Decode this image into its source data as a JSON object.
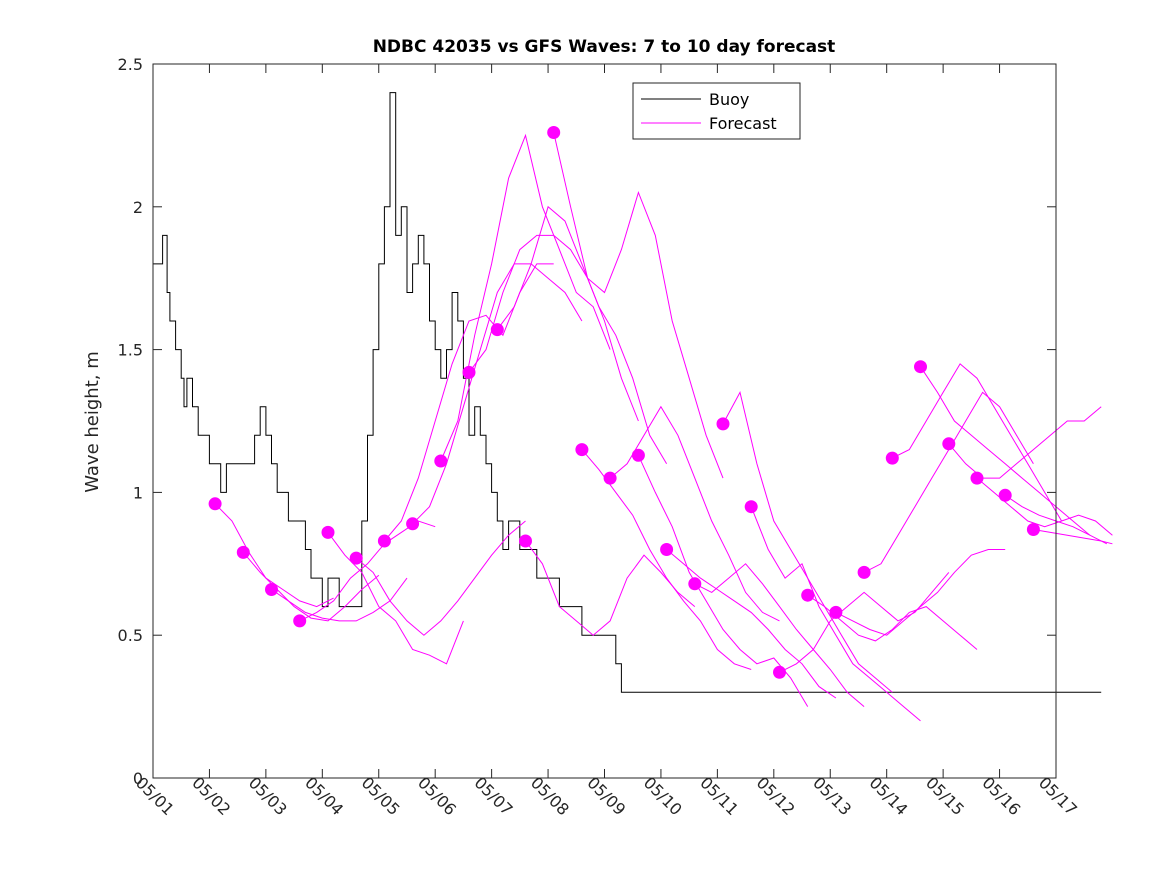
{
  "chart_data": {
    "type": "line",
    "title": "NDBC 42035 vs GFS Waves: 7 to 10 day forecast",
    "xlabel": "",
    "ylabel": "Wave height, m",
    "xlim": [
      "05/01",
      "05/17"
    ],
    "ylim": [
      0,
      2.5
    ],
    "x_units": "days since 05/01 00:00",
    "x_ticks": [
      "05/01",
      "05/02",
      "05/03",
      "05/04",
      "05/05",
      "05/06",
      "05/07",
      "05/08",
      "05/09",
      "05/10",
      "05/11",
      "05/12",
      "05/13",
      "05/14",
      "05/15",
      "05/16",
      "05/17"
    ],
    "y_ticks": [
      "0",
      "0.5",
      "1",
      "1.5",
      "2",
      "2.5"
    ],
    "grid": false,
    "legend": {
      "location": "top-center-right",
      "entries": [
        "Buoy",
        "Forecast"
      ]
    },
    "colors": {
      "buoy": "#000000",
      "forecast": "#ff00ff"
    },
    "series": [
      {
        "name": "Buoy",
        "style": "step-line",
        "x": [
          0.0,
          0.1,
          0.17,
          0.25,
          0.3,
          0.4,
          0.5,
          0.55,
          0.6,
          0.7,
          0.8,
          0.9,
          1.0,
          1.1,
          1.2,
          1.3,
          1.5,
          1.6,
          1.7,
          1.8,
          1.9,
          2.0,
          2.1,
          2.2,
          2.4,
          2.6,
          2.7,
          2.75,
          2.8,
          2.9,
          3.0,
          3.1,
          3.2,
          3.3,
          3.4,
          3.5,
          3.6,
          3.7,
          3.8,
          3.9,
          4.0,
          4.1,
          4.2,
          4.3,
          4.4,
          4.5,
          4.6,
          4.7,
          4.8,
          4.9,
          5.0,
          5.1,
          5.2,
          5.3,
          5.4,
          5.5,
          5.6,
          5.7,
          5.8,
          5.9,
          6.0,
          6.1,
          6.2,
          6.3,
          6.4,
          6.5,
          6.6,
          6.7,
          6.8,
          6.9,
          7.0,
          7.1,
          7.2,
          7.3,
          7.4,
          7.5,
          7.6,
          7.7,
          7.8,
          7.9,
          8.0,
          8.1,
          8.2,
          8.3,
          8.4,
          8.5,
          8.6,
          8.7,
          8.8,
          8.9,
          9.0,
          9.1,
          9.2,
          9.3,
          9.4,
          9.5,
          9.6,
          9.7,
          9.8,
          9.9,
          10.0,
          10.1,
          10.2,
          10.3,
          10.4,
          10.5,
          10.6,
          10.7,
          10.8,
          10.9,
          11.0,
          11.1,
          11.2,
          11.3,
          11.4,
          11.5,
          11.6,
          11.7,
          11.8,
          11.9,
          12.0,
          12.1,
          12.2,
          12.3,
          12.4,
          12.5,
          12.6,
          12.7,
          12.8,
          12.9,
          13.0,
          13.1,
          13.2,
          13.3,
          13.4,
          13.5,
          13.6,
          13.7,
          13.8,
          13.9,
          14.0,
          14.1,
          14.2,
          14.3,
          14.4,
          14.5,
          14.6,
          14.7,
          14.8,
          14.9,
          15.0,
          15.1,
          15.2,
          15.3,
          15.4,
          15.5,
          15.6,
          15.7,
          15.8,
          15.9,
          16.0,
          16.1,
          16.2,
          16.3,
          16.4,
          16.5,
          16.6,
          16.7,
          16.8
        ],
        "y": [
          1.8,
          1.8,
          1.9,
          1.7,
          1.6,
          1.5,
          1.4,
          1.3,
          1.4,
          1.3,
          1.2,
          1.2,
          1.1,
          1.1,
          1.0,
          1.1,
          1.1,
          1.1,
          1.1,
          1.2,
          1.3,
          1.2,
          1.1,
          1.0,
          0.9,
          0.9,
          0.8,
          0.8,
          0.7,
          0.7,
          0.6,
          0.7,
          0.7,
          0.6,
          0.6,
          0.6,
          0.6,
          0.9,
          1.2,
          1.5,
          1.8,
          2.0,
          2.4,
          1.9,
          2.0,
          1.7,
          1.8,
          1.9,
          1.8,
          1.6,
          1.5,
          1.4,
          1.5,
          1.7,
          1.6,
          1.4,
          1.2,
          1.3,
          1.2,
          1.1,
          1.0,
          0.9,
          0.8,
          0.9,
          0.9,
          0.8,
          0.8,
          0.8,
          0.7,
          0.7,
          0.7,
          0.7,
          0.6,
          0.6,
          0.6,
          0.6,
          0.5,
          0.5,
          0.5,
          0.5,
          0.5,
          0.5,
          0.4,
          0.3,
          0.3,
          0.3,
          0.3,
          0.3,
          0.3,
          0.3,
          0.3,
          0.3,
          0.3,
          0.3,
          0.3,
          0.3,
          0.3,
          0.3,
          0.3,
          0.3,
          0.3,
          0.3,
          0.3,
          0.3,
          0.3,
          0.3,
          0.3,
          0.3,
          0.3,
          0.3,
          0.3,
          0.3,
          0.3,
          0.3,
          0.3,
          0.3,
          0.3,
          0.3,
          0.3,
          0.3,
          0.3,
          0.3,
          0.3,
          0.3,
          0.3,
          0.3,
          0.3,
          0.3,
          0.3,
          0.3,
          0.3,
          0.3,
          0.3,
          0.3,
          0.3,
          0.3,
          0.3,
          0.3,
          0.3,
          0.3,
          0.3,
          0.3,
          0.3,
          0.3,
          0.3,
          0.3,
          0.3,
          0.3,
          0.3,
          0.3,
          0.3,
          0.3,
          0.3,
          0.3,
          0.3,
          0.3,
          0.3,
          0.3,
          0.3,
          0.3,
          0.3,
          0.3,
          0.3,
          0.3,
          0.3,
          0.3,
          0.3,
          0.3,
          0.3
        ]
      },
      {
        "name": "Forecast",
        "x": [
          1.1,
          1.4,
          1.7,
          2.0,
          2.3,
          2.6,
          2.9,
          3.2
        ],
        "y": [
          0.96,
          0.9,
          0.79,
          0.7,
          0.66,
          0.62,
          0.6,
          0.63
        ]
      },
      {
        "name": "Forecast",
        "x": [
          1.6,
          1.9,
          2.2,
          2.5,
          2.8,
          3.1,
          3.4,
          3.7,
          4.0
        ],
        "y": [
          0.79,
          0.72,
          0.66,
          0.6,
          0.56,
          0.55,
          0.6,
          0.66,
          0.71
        ]
      },
      {
        "name": "Forecast",
        "x": [
          2.1,
          2.4,
          2.7,
          3.0,
          3.3,
          3.6,
          3.9,
          4.2,
          4.5
        ],
        "y": [
          0.66,
          0.62,
          0.58,
          0.56,
          0.55,
          0.55,
          0.58,
          0.62,
          0.7
        ]
      },
      {
        "name": "Forecast",
        "x": [
          2.6,
          2.9,
          3.2,
          3.5,
          3.8,
          4.1,
          4.4,
          4.7,
          5.0
        ],
        "y": [
          0.55,
          0.58,
          0.62,
          0.7,
          0.75,
          0.82,
          0.86,
          0.9,
          0.88
        ]
      },
      {
        "name": "Forecast",
        "x": [
          3.1,
          3.4,
          3.7,
          4.0,
          4.3,
          4.6,
          4.9,
          5.2,
          5.5
        ],
        "y": [
          0.86,
          0.78,
          0.72,
          0.6,
          0.55,
          0.45,
          0.43,
          0.4,
          0.55
        ]
      },
      {
        "name": "Forecast",
        "x": [
          3.6,
          3.9,
          4.2,
          4.5,
          4.8,
          5.1,
          5.4,
          5.7,
          6.0,
          6.3,
          6.6
        ],
        "y": [
          0.77,
          0.72,
          0.62,
          0.55,
          0.5,
          0.55,
          0.62,
          0.7,
          0.78,
          0.85,
          0.9
        ]
      },
      {
        "name": "Forecast",
        "x": [
          4.1,
          4.4,
          4.7,
          5.0,
          5.3,
          5.6,
          5.9,
          6.2,
          6.5,
          6.8,
          7.1
        ],
        "y": [
          0.83,
          0.9,
          1.05,
          1.25,
          1.45,
          1.6,
          1.62,
          1.55,
          1.7,
          1.8,
          1.8
        ]
      },
      {
        "name": "Forecast",
        "x": [
          4.6,
          4.9,
          5.2,
          5.5,
          5.8,
          6.1,
          6.4,
          6.7,
          7.0,
          7.3,
          7.6
        ],
        "y": [
          0.89,
          0.95,
          1.1,
          1.3,
          1.5,
          1.7,
          1.8,
          1.8,
          1.75,
          1.7,
          1.6
        ]
      },
      {
        "name": "Forecast",
        "x": [
          5.1,
          5.4,
          5.7,
          6.0,
          6.3,
          6.6,
          6.9,
          7.2,
          7.5,
          7.8,
          8.1
        ],
        "y": [
          1.11,
          1.25,
          1.55,
          1.8,
          2.1,
          2.25,
          2.0,
          1.85,
          1.7,
          1.65,
          1.5
        ]
      },
      {
        "name": "Forecast",
        "x": [
          5.6,
          5.9,
          6.2,
          6.5,
          6.8,
          7.1,
          7.4,
          7.7,
          8.0,
          8.3,
          8.6
        ],
        "y": [
          1.42,
          1.5,
          1.7,
          1.85,
          1.9,
          1.9,
          1.85,
          1.75,
          1.6,
          1.4,
          1.25
        ]
      },
      {
        "name": "Forecast",
        "x": [
          6.1,
          6.4,
          6.7,
          7.0,
          7.3,
          7.6,
          7.9,
          8.2,
          8.5,
          8.8,
          9.1
        ],
        "y": [
          1.57,
          1.65,
          1.8,
          2.0,
          1.95,
          1.8,
          1.65,
          1.55,
          1.4,
          1.2,
          1.1
        ]
      },
      {
        "name": "Forecast",
        "x": [
          6.6,
          6.9,
          7.2,
          7.5,
          7.8,
          8.1,
          8.4,
          8.7,
          9.0,
          9.3,
          9.6
        ],
        "y": [
          0.83,
          0.75,
          0.6,
          0.55,
          0.5,
          0.55,
          0.7,
          0.78,
          0.72,
          0.65,
          0.6
        ]
      },
      {
        "name": "Forecast",
        "x": [
          7.1,
          7.4,
          7.7,
          8.0,
          8.3,
          8.6,
          8.9,
          9.2,
          9.5,
          9.8,
          10.1
        ],
        "y": [
          2.26,
          2.0,
          1.75,
          1.7,
          1.85,
          2.05,
          1.9,
          1.6,
          1.4,
          1.2,
          1.05
        ]
      },
      {
        "name": "Forecast",
        "x": [
          7.6,
          7.9,
          8.2,
          8.5,
          8.8,
          9.1,
          9.4,
          9.7,
          10.0,
          10.3,
          10.6
        ],
        "y": [
          1.15,
          1.08,
          1.0,
          0.92,
          0.8,
          0.7,
          0.62,
          0.55,
          0.45,
          0.4,
          0.38
        ]
      },
      {
        "name": "Forecast",
        "x": [
          8.1,
          8.4,
          8.7,
          9.0,
          9.3,
          9.6,
          9.9,
          10.2,
          10.5,
          10.8,
          11.1
        ],
        "y": [
          1.05,
          1.1,
          1.2,
          1.3,
          1.2,
          1.05,
          0.9,
          0.78,
          0.65,
          0.58,
          0.55
        ]
      },
      {
        "name": "Forecast",
        "x": [
          8.6,
          8.9,
          9.2,
          9.5,
          9.8,
          10.1,
          10.4,
          10.7,
          11.0,
          11.3,
          11.6
        ],
        "y": [
          1.13,
          1.0,
          0.88,
          0.72,
          0.62,
          0.52,
          0.45,
          0.4,
          0.42,
          0.35,
          0.25
        ]
      },
      {
        "name": "Forecast",
        "x": [
          9.1,
          9.4,
          9.7,
          10.0,
          10.3,
          10.6,
          10.9,
          11.2,
          11.5,
          11.8,
          12.1
        ],
        "y": [
          0.8,
          0.75,
          0.7,
          0.66,
          0.62,
          0.58,
          0.52,
          0.45,
          0.4,
          0.32,
          0.28
        ]
      },
      {
        "name": "Forecast",
        "x": [
          9.6,
          9.9,
          10.2,
          10.5,
          10.8,
          11.1,
          11.4,
          11.7,
          12.0,
          12.3,
          12.6
        ],
        "y": [
          0.68,
          0.65,
          0.7,
          0.75,
          0.68,
          0.6,
          0.52,
          0.45,
          0.38,
          0.3,
          0.25
        ]
      },
      {
        "name": "Forecast",
        "x": [
          10.1,
          10.4,
          10.7,
          11.0,
          11.3,
          11.6,
          11.9,
          12.2,
          12.5,
          12.8,
          13.1
        ],
        "y": [
          1.24,
          1.35,
          1.1,
          0.9,
          0.8,
          0.7,
          0.6,
          0.5,
          0.4,
          0.35,
          0.3
        ]
      },
      {
        "name": "Forecast",
        "x": [
          10.6,
          10.9,
          11.2,
          11.5,
          11.8,
          12.1,
          12.4,
          12.7,
          13.0,
          13.3,
          13.6
        ],
        "y": [
          0.95,
          0.8,
          0.7,
          0.75,
          0.6,
          0.5,
          0.4,
          0.35,
          0.3,
          0.25,
          0.2
        ]
      },
      {
        "name": "Forecast",
        "x": [
          11.1,
          11.4,
          11.7,
          12.0,
          12.3,
          12.6,
          12.9,
          13.2,
          13.5,
          13.8,
          14.1
        ],
        "y": [
          0.37,
          0.4,
          0.45,
          0.55,
          0.6,
          0.65,
          0.6,
          0.55,
          0.58,
          0.65,
          0.72
        ]
      },
      {
        "name": "Forecast",
        "x": [
          11.6,
          11.9,
          12.2,
          12.5,
          12.8,
          13.1,
          13.4,
          13.7,
          14.0,
          14.3,
          14.6
        ],
        "y": [
          0.64,
          0.6,
          0.55,
          0.5,
          0.48,
          0.52,
          0.58,
          0.6,
          0.55,
          0.5,
          0.45
        ]
      },
      {
        "name": "Forecast",
        "x": [
          12.1,
          12.4,
          12.7,
          13.0,
          13.3,
          13.6,
          13.9,
          14.2,
          14.5,
          14.8,
          15.1
        ],
        "y": [
          0.58,
          0.55,
          0.52,
          0.5,
          0.55,
          0.6,
          0.65,
          0.72,
          0.78,
          0.8,
          0.8
        ]
      },
      {
        "name": "Forecast",
        "x": [
          12.6,
          12.9,
          13.2,
          13.5,
          13.8,
          14.1,
          14.4,
          14.7,
          15.0,
          15.3,
          15.6
        ],
        "y": [
          0.72,
          0.75,
          0.85,
          0.95,
          1.05,
          1.15,
          1.25,
          1.35,
          1.3,
          1.2,
          1.1
        ]
      },
      {
        "name": "Forecast",
        "x": [
          13.1,
          13.4,
          13.7,
          14.0,
          14.3,
          14.6,
          14.9,
          15.2,
          15.5,
          15.8,
          16.1
        ],
        "y": [
          1.12,
          1.15,
          1.25,
          1.35,
          1.45,
          1.4,
          1.3,
          1.2,
          1.1,
          1.0,
          0.9
        ]
      },
      {
        "name": "Forecast",
        "x": [
          13.6,
          13.9,
          14.2,
          14.5,
          14.8,
          15.1,
          15.4,
          15.7,
          16.0,
          16.3,
          16.6
        ],
        "y": [
          1.44,
          1.35,
          1.25,
          1.2,
          1.15,
          1.1,
          1.05,
          1.0,
          0.95,
          0.9,
          0.85
        ]
      },
      {
        "name": "Forecast",
        "x": [
          14.1,
          14.4,
          14.7,
          15.0,
          15.3,
          15.6,
          15.9,
          16.2,
          16.5,
          16.8
        ],
        "y": [
          1.17,
          1.1,
          1.05,
          1.05,
          1.1,
          1.15,
          1.2,
          1.25,
          1.25,
          1.3
        ]
      },
      {
        "name": "Forecast",
        "x": [
          14.6,
          14.9,
          15.2,
          15.5,
          15.8,
          16.1,
          16.4,
          16.7,
          17.0
        ],
        "y": [
          1.05,
          1.0,
          0.95,
          0.9,
          0.88,
          0.9,
          0.92,
          0.9,
          0.85
        ]
      },
      {
        "name": "Forecast",
        "x": [
          15.1,
          15.4,
          15.7,
          16.0,
          16.3,
          16.6,
          16.9
        ],
        "y": [
          0.99,
          0.95,
          0.92,
          0.9,
          0.88,
          0.85,
          0.82
        ]
      },
      {
        "name": "Forecast",
        "x": [
          15.6,
          15.9,
          16.2,
          16.5,
          16.8,
          17.0
        ],
        "y": [
          0.87,
          0.86,
          0.85,
          0.84,
          0.83,
          0.82
        ]
      }
    ],
    "forecast_markers": {
      "x": [
        1.1,
        1.6,
        2.1,
        2.6,
        3.1,
        3.6,
        4.1,
        4.6,
        5.1,
        5.6,
        6.1,
        6.6,
        7.1,
        7.6,
        8.1,
        8.6,
        9.1,
        9.6,
        10.1,
        10.6,
        11.1,
        11.6,
        12.1,
        12.6,
        13.1,
        13.6,
        14.1,
        14.6,
        15.1,
        15.6
      ],
      "y": [
        0.96,
        0.79,
        0.66,
        0.55,
        0.86,
        0.77,
        0.83,
        0.89,
        1.11,
        1.42,
        1.57,
        0.83,
        2.26,
        1.15,
        1.05,
        1.13,
        0.8,
        0.68,
        1.24,
        0.95,
        0.37,
        0.64,
        0.58,
        0.72,
        1.12,
        1.44,
        1.17,
        1.05,
        0.99,
        0.87
      ]
    }
  }
}
